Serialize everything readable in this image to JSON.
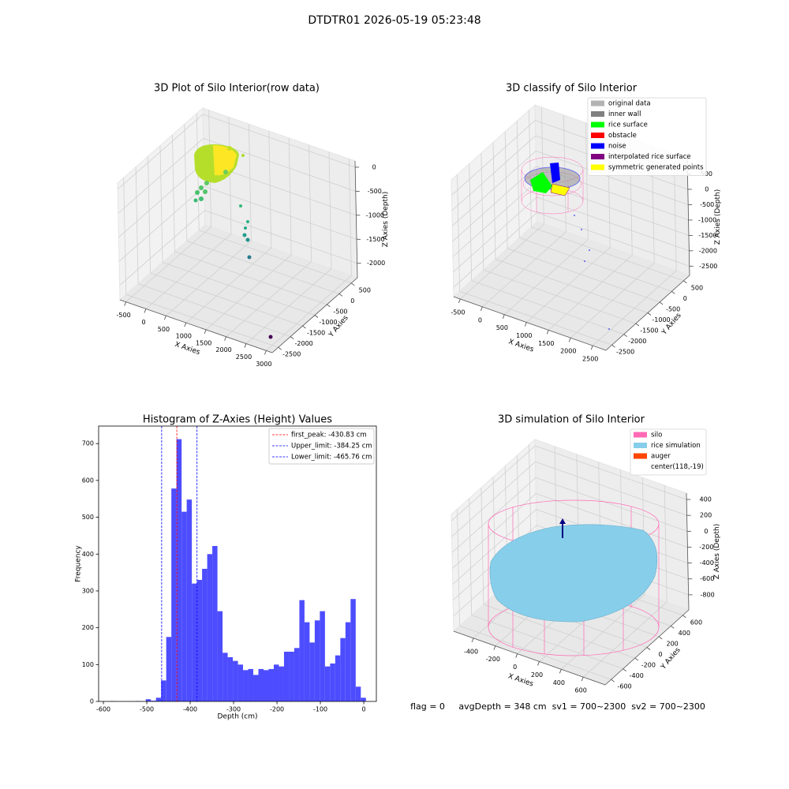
{
  "title": "DTDTR01 2026-05-19 05:23:48",
  "footer": "flag = 0     avgDepth = 348 cm  sv1 = 700~2300  sv2 = 700~2300",
  "chart_data": [
    {
      "type": "scatter3d",
      "title": "3D Plot of Silo Interior(row data)",
      "xlabel": "X Axies",
      "ylabel": "Y Axies",
      "zlabel": "Z Axies (Depth)",
      "xlim": [
        -650,
        3150
      ],
      "ylim": [
        -2750,
        750
      ],
      "zlim": [
        -2300,
        130
      ],
      "xticks": [
        -500,
        0,
        500,
        1000,
        1500,
        2000,
        2500,
        3000
      ],
      "yticks": [
        -2500,
        -2000,
        -1500,
        -1000,
        -500,
        0,
        500
      ],
      "zticks": [
        -2000,
        -1500,
        -1000,
        -500,
        0
      ]
    },
    {
      "type": "scatter3d",
      "title": "3D classify of Silo Interior",
      "xlabel": "X Axies",
      "ylabel": "Y Axies",
      "zlabel": "Z Axies (Depth)",
      "xlim": [
        -650,
        2800
      ],
      "ylim": [
        -2750,
        750
      ],
      "zlim": [
        -2800,
        1000
      ],
      "xticks": [
        -500,
        0,
        500,
        1000,
        1500,
        2000,
        2500
      ],
      "yticks": [
        -2500,
        -2000,
        -1500,
        -1000,
        -500,
        0,
        500
      ],
      "zticks": [
        -2500,
        -2000,
        -1500,
        -1000,
        -500,
        0,
        500
      ],
      "legend": [
        {
          "name": "original data",
          "color": "#b3b3b3"
        },
        {
          "name": "inner wall",
          "color": "#808080"
        },
        {
          "name": "rice surface",
          "color": "#00ff00"
        },
        {
          "name": "obstacle",
          "color": "#ff0000"
        },
        {
          "name": "noise",
          "color": "#0000ff"
        },
        {
          "name": "interpolated rice surface",
          "color": "#800080"
        },
        {
          "name": "symmetric generated points",
          "color": "#ffff00"
        }
      ]
    },
    {
      "type": "histogram",
      "title": "Histogram of Z-Axies (Height) Values",
      "xlabel": "Depth (cm)",
      "ylabel": "Frequency",
      "color": "#4d4dff",
      "bins": [
        -585,
        -573.2,
        -561.4,
        -549.6,
        -537.8,
        -526,
        -514.2,
        -502.4,
        -490.6,
        -478.8,
        -467,
        -455.2,
        -443.4,
        -431.6,
        -419.8,
        -408,
        -396.2,
        -384.4,
        -372.6,
        -360.8,
        -349,
        -337.2,
        -325.4,
        -313.6,
        -301.8,
        -290,
        -278.2,
        -266.4,
        -254.6,
        -242.8,
        -231,
        -219.2,
        -207.4,
        -195.6,
        -183.8,
        -172,
        -160.2,
        -148.4,
        -136.6,
        -124.8,
        -113,
        -101.2,
        -89.4,
        -77.6,
        -65.8,
        -54,
        -42.2,
        -30.4,
        -18.6,
        -6.8,
        5
      ],
      "values": [
        1,
        0,
        0,
        0,
        0,
        1,
        0,
        6,
        2,
        10,
        57,
        175,
        578,
        712,
        515,
        548,
        320,
        330,
        360,
        400,
        422,
        245,
        132,
        120,
        110,
        100,
        85,
        88,
        72,
        88,
        85,
        88,
        100,
        95,
        135,
        135,
        145,
        275,
        215,
        160,
        220,
        245,
        95,
        103,
        125,
        172,
        215,
        278,
        40,
        10
      ],
      "xlim": [
        -611,
        29
      ],
      "ylim": [
        0,
        747.6
      ],
      "xticks": [
        -600,
        -500,
        -400,
        -300,
        -200,
        -100,
        0
      ],
      "yticks": [
        0,
        100,
        200,
        300,
        400,
        500,
        600,
        700
      ],
      "vlines": [
        {
          "label": "first_peak: -430.83 cm",
          "value": -430.83,
          "color": "#ff0000"
        },
        {
          "label": "Upper_limit: -384.25 cm",
          "value": -384.25,
          "color": "#0000ff"
        },
        {
          "label": "Lower_limit: -465.76 cm",
          "value": -465.76,
          "color": "#0000ff"
        }
      ]
    },
    {
      "type": "wireframe3d",
      "title": "3D simulation of Silo Interior",
      "xlabel": "X Axies",
      "ylabel": "Y Axies",
      "zlabel": "Z Axies (Depth)",
      "xlim": [
        -580,
        800
      ],
      "ylim": [
        -700,
        700
      ],
      "zlim": [
        -990,
        480
      ],
      "xticks": [
        -400,
        -200,
        0,
        200,
        400,
        600
      ],
      "yticks": [
        -600,
        -400,
        -200,
        0,
        200,
        400,
        600
      ],
      "zticks": [
        -800,
        -600,
        -400,
        -200,
        0,
        200,
        400
      ],
      "legend": [
        {
          "name": "silo",
          "color": "#ff69b4"
        },
        {
          "name": "rice simulation",
          "color": "#87ceeb"
        },
        {
          "name": "auger",
          "color": "#ff4500"
        },
        {
          "name": "center(118,-19)"
        }
      ]
    }
  ]
}
